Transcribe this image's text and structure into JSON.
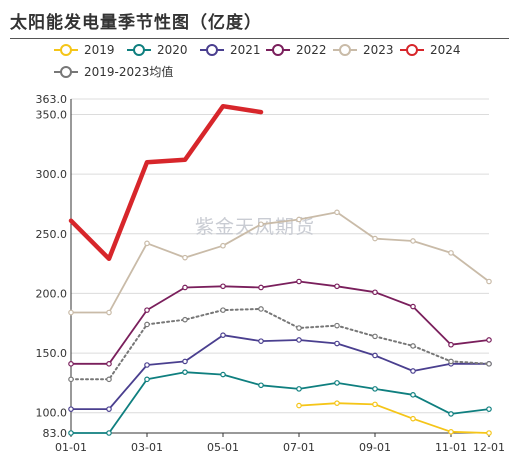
{
  "chart_data": {
    "type": "line",
    "title": "太阳能发电量季节性图（亿度）",
    "watermark": "紫金天风期货",
    "xlabel": "",
    "ylabel": "",
    "x": [
      "01-01",
      "02-01",
      "03-01",
      "04-01",
      "05-01",
      "06-01",
      "07-01",
      "08-01",
      "09-01",
      "10-01",
      "11-01",
      "12-01"
    ],
    "x_ticks": [
      "01-01",
      "03-01",
      "05-01",
      "07-01",
      "09-01",
      "11-01",
      "12-01"
    ],
    "y_ticks": [
      "83.0",
      "100.0",
      "150.0",
      "200.0",
      "250.0",
      "300.0",
      "350.0",
      "363.0"
    ],
    "ylim": [
      83,
      363
    ],
    "grid": true,
    "legend_position": "top",
    "series": [
      {
        "name": "2019",
        "color": "#f5c518",
        "style": "solid",
        "values": [
          null,
          null,
          null,
          null,
          null,
          null,
          106,
          108,
          107,
          95,
          84,
          83
        ]
      },
      {
        "name": "2020",
        "color": "#0f7f7f",
        "style": "solid",
        "values": [
          83,
          83,
          128,
          134,
          132,
          123,
          120,
          125,
          120,
          115,
          99,
          103
        ]
      },
      {
        "name": "2021",
        "color": "#4a3f8f",
        "style": "solid",
        "values": [
          103,
          103,
          140,
          143,
          165,
          160,
          161,
          158,
          148,
          135,
          141,
          141
        ]
      },
      {
        "name": "2022",
        "color": "#7a1f5c",
        "style": "solid",
        "values": [
          141,
          141,
          186,
          205,
          206,
          205,
          210,
          206,
          201,
          189,
          157,
          161
        ]
      },
      {
        "name": "2023",
        "color": "#c9bba8",
        "style": "solid",
        "values": [
          184,
          184,
          242,
          230,
          240,
          258,
          262,
          268,
          246,
          244,
          234,
          210
        ]
      },
      {
        "name": "2024",
        "color": "#d7262b",
        "style": "bold",
        "values": [
          261,
          229,
          310,
          312,
          357,
          352,
          null,
          null,
          null,
          null,
          null,
          null
        ]
      },
      {
        "name": "2019-2023均值",
        "color": "#777777",
        "style": "dotted",
        "values": [
          128,
          128,
          174,
          178,
          186,
          187,
          171,
          173,
          164,
          156,
          143,
          141
        ]
      }
    ]
  }
}
